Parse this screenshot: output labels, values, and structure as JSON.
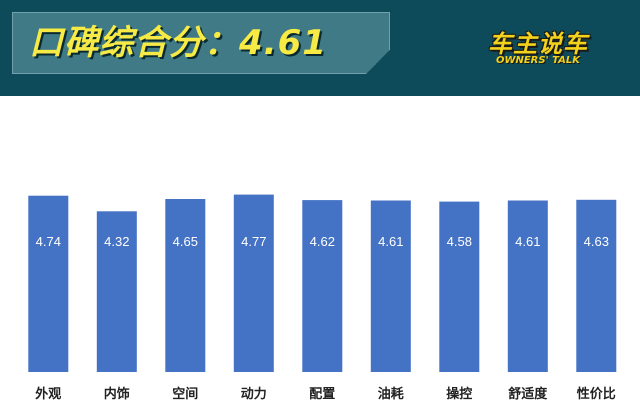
{
  "header": {
    "title": "口碑综合分：4.61",
    "logo_main": "车主说车",
    "logo_sub": "OWNERS' TALK"
  },
  "colors": {
    "header_bg": "#0d4a5a",
    "title_box": "#3f7a86",
    "title_text": "#f7ea45",
    "bar": "#4472c4",
    "bar_label": "#ffffff",
    "category_label": "#222222"
  },
  "chart_data": {
    "type": "bar",
    "categories": [
      "外观",
      "内饰",
      "空间",
      "动力",
      "配置",
      "油耗",
      "操控",
      "舒适度",
      "性价比"
    ],
    "values": [
      4.74,
      4.32,
      4.65,
      4.77,
      4.62,
      4.61,
      4.58,
      4.61,
      4.63
    ],
    "data_labels": [
      "4.74",
      "4.32",
      "4.65",
      "4.77",
      "4.62",
      "4.61",
      "4.58",
      "4.61",
      "4.63"
    ],
    "title": "",
    "xlabel": "",
    "ylabel": "",
    "ylim": [
      0,
      5.0
    ],
    "grid": false,
    "legend": "none"
  }
}
